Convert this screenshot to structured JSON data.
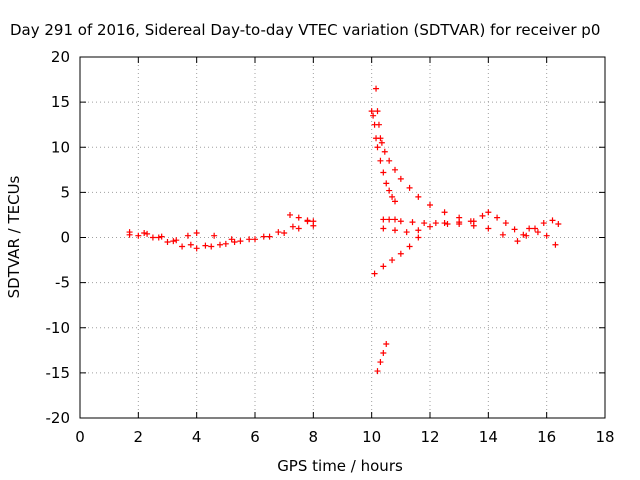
{
  "chart_data": {
    "type": "scatter",
    "title": "Day 291 of 2016, Sidereal Day-to-day VTEC variation (SDTVAR) for receiver p0",
    "xlabel": "GPS time / hours",
    "ylabel": "SDTVAR / TECUs",
    "xlim": [
      0,
      18
    ],
    "ylim": [
      -20,
      20
    ],
    "xticks": [
      0,
      2,
      4,
      6,
      8,
      10,
      12,
      14,
      16,
      18
    ],
    "yticks": [
      -20,
      -15,
      -10,
      -5,
      0,
      5,
      10,
      15,
      20
    ],
    "grid": true,
    "marker": "+",
    "color": "#ff0000",
    "series": [
      {
        "x": [
          1.7,
          2.0,
          2.5,
          3.0,
          3.5,
          4.0,
          4.5,
          5.0,
          5.5,
          6.0,
          6.5,
          7.0,
          7.5,
          8.0
        ],
        "y": [
          0.3,
          0.2,
          0.0,
          -0.5,
          -1.0,
          -1.2,
          -1.0,
          -0.7,
          -0.4,
          -0.2,
          0.1,
          0.5,
          1.0,
          1.3
        ]
      },
      {
        "x": [
          1.7,
          2.2,
          2.8,
          3.3,
          3.8,
          4.3,
          4.8,
          5.3,
          5.8,
          6.3,
          6.8,
          7.3,
          7.8
        ],
        "y": [
          0.6,
          0.5,
          0.1,
          -0.3,
          -0.8,
          -0.9,
          -0.8,
          -0.5,
          -0.2,
          0.1,
          0.6,
          1.2,
          1.8
        ]
      },
      {
        "x": [
          2.3,
          2.7,
          3.2,
          3.7
        ],
        "y": [
          0.4,
          0.0,
          -0.4,
          0.2
        ]
      },
      {
        "x": [
          4.0,
          4.6,
          5.2
        ],
        "y": [
          0.5,
          0.2,
          -0.2
        ]
      },
      {
        "x": [
          7.2,
          7.5,
          7.8,
          8.0
        ],
        "y": [
          2.5,
          2.2,
          1.9,
          1.8
        ]
      },
      {
        "x": [
          10.15,
          10.2,
          10.25,
          10.3,
          10.35,
          10.45,
          10.6,
          10.8,
          11.0,
          11.3,
          11.6,
          12.0,
          12.5,
          13.0,
          13.5
        ],
        "y": [
          16.5,
          14.0,
          12.5,
          11.0,
          10.5,
          9.5,
          8.5,
          7.5,
          6.5,
          5.5,
          4.5,
          3.6,
          2.8,
          2.2,
          1.8
        ]
      },
      {
        "x": [
          10.0,
          10.05,
          10.1,
          10.15,
          10.2,
          10.3,
          10.4,
          10.5,
          10.6,
          10.7,
          10.8
        ],
        "y": [
          14.0,
          13.5,
          12.5,
          11.0,
          10.0,
          8.5,
          7.2,
          6.0,
          5.2,
          4.5,
          4.0
        ]
      },
      {
        "x": [
          10.4,
          10.6,
          10.8,
          11.0,
          11.4,
          11.8,
          12.2,
          12.6,
          13.0,
          13.4,
          13.8,
          14.0,
          14.3,
          14.6,
          14.9,
          15.2
        ],
        "y": [
          2.0,
          2.0,
          2.0,
          1.8,
          1.7,
          1.6,
          1.6,
          1.5,
          1.5,
          1.8,
          2.4,
          2.8,
          2.2,
          1.6,
          0.9,
          0.3
        ]
      },
      {
        "x": [
          10.4,
          10.8,
          11.2,
          11.6,
          12.0,
          12.5,
          13.0,
          13.5,
          14.0,
          14.5,
          15.0
        ],
        "y": [
          1.0,
          0.8,
          0.6,
          0.8,
          1.2,
          1.6,
          1.7,
          1.3,
          1.0,
          0.3,
          -0.4
        ]
      },
      {
        "x": [
          10.1,
          10.4,
          10.7,
          11.0,
          11.3,
          11.6
        ],
        "y": [
          -4.0,
          -3.2,
          -2.5,
          -1.8,
          -1.0,
          0.0
        ]
      },
      {
        "x": [
          10.2,
          10.3,
          10.4,
          10.5
        ],
        "y": [
          -14.8,
          -13.8,
          -12.8,
          -11.8
        ]
      },
      {
        "x": [
          15.3,
          15.6,
          15.9,
          16.2,
          16.4
        ],
        "y": [
          0.2,
          1.0,
          1.6,
          1.9,
          1.5
        ]
      },
      {
        "x": [
          15.4,
          15.7,
          16.0,
          16.3
        ],
        "y": [
          1.0,
          0.6,
          0.2,
          -0.8
        ]
      }
    ]
  }
}
